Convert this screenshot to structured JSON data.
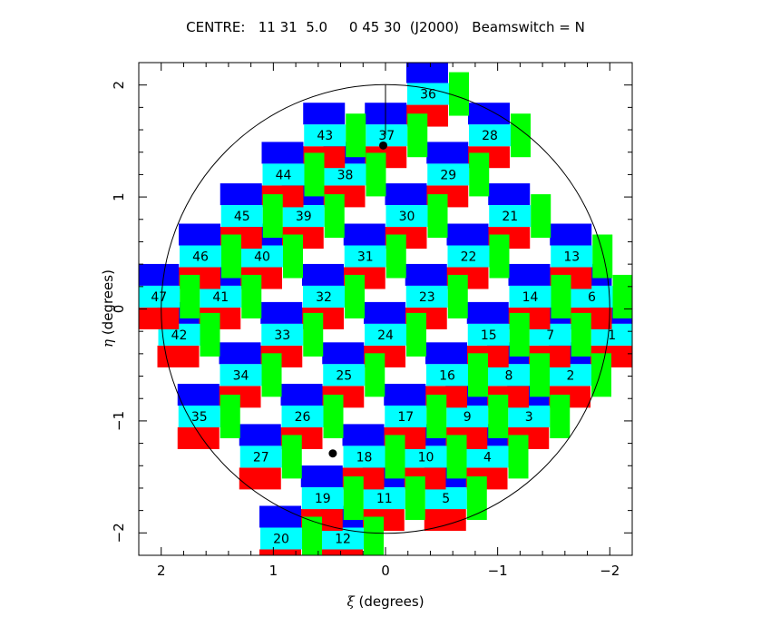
{
  "header": {
    "text": "CENTRE:   11 31  5.0     0 45 30  (J2000)   Beamswitch = N"
  },
  "colors": {
    "blue": "#0000ff",
    "red": "#ff0000",
    "cyan": "#00ffff",
    "green": "#00ff00"
  },
  "axes": {
    "xlabel_symbol": "ξ",
    "xlabel_rest": " (degrees)",
    "ylabel_symbol": "η",
    "ylabel_rest": " (degrees)",
    "xlim": [
      2.2,
      -2.2
    ],
    "ylim": [
      -2.2,
      2.2
    ],
    "xticks": [
      {
        "value": 2,
        "label": "2"
      },
      {
        "value": 1,
        "label": "1"
      },
      {
        "value": 0,
        "label": "0"
      },
      {
        "value": -1,
        "label": "−1"
      },
      {
        "value": -2,
        "label": "−2"
      }
    ],
    "yticks": [
      {
        "value": 2,
        "label": "2"
      },
      {
        "value": 1,
        "label": "1"
      },
      {
        "value": 0,
        "label": "0"
      },
      {
        "value": -1,
        "label": "−1"
      },
      {
        "value": -2,
        "label": "−2"
      }
    ]
  },
  "circle": {
    "xi": 0,
    "eta": 0,
    "radius": 2.0
  },
  "marker_points": [
    {
      "xi": 0.02,
      "eta": 1.46
    },
    {
      "xi": 0.47,
      "eta": -1.29
    }
  ],
  "tiles": [
    {
      "label": "1",
      "xi": -2.02,
      "eta": -0.23
    },
    {
      "label": "2",
      "xi": -1.65,
      "eta": -0.59
    },
    {
      "label": "3",
      "xi": -1.28,
      "eta": -0.96
    },
    {
      "label": "4",
      "xi": -0.91,
      "eta": -1.32
    },
    {
      "label": "5",
      "xi": -0.54,
      "eta": -1.69
    },
    {
      "label": "6",
      "xi": -1.84,
      "eta": 0.11
    },
    {
      "label": "7",
      "xi": -1.47,
      "eta": -0.23
    },
    {
      "label": "8",
      "xi": -1.1,
      "eta": -0.59
    },
    {
      "label": "9",
      "xi": -0.73,
      "eta": -0.96
    },
    {
      "label": "10",
      "xi": -0.36,
      "eta": -1.32
    },
    {
      "label": "11",
      "xi": 0.01,
      "eta": -1.69
    },
    {
      "label": "12",
      "xi": 0.38,
      "eta": -2.05
    },
    {
      "label": "13",
      "xi": -1.66,
      "eta": 0.47
    },
    {
      "label": "14",
      "xi": -1.29,
      "eta": 0.11
    },
    {
      "label": "15",
      "xi": -0.92,
      "eta": -0.23
    },
    {
      "label": "16",
      "xi": -0.55,
      "eta": -0.59
    },
    {
      "label": "17",
      "xi": -0.18,
      "eta": -0.96
    },
    {
      "label": "18",
      "xi": 0.19,
      "eta": -1.32
    },
    {
      "label": "19",
      "xi": 0.56,
      "eta": -1.69
    },
    {
      "label": "20",
      "xi": 0.93,
      "eta": -2.05
    },
    {
      "label": "21",
      "xi": -1.11,
      "eta": 0.83
    },
    {
      "label": "22",
      "xi": -0.74,
      "eta": 0.47
    },
    {
      "label": "23",
      "xi": -0.37,
      "eta": 0.11
    },
    {
      "label": "24",
      "xi": 0.0,
      "eta": -0.23
    },
    {
      "label": "25",
      "xi": 0.37,
      "eta": -0.59
    },
    {
      "label": "26",
      "xi": 0.74,
      "eta": -0.96
    },
    {
      "label": "27",
      "xi": 1.11,
      "eta": -1.32
    },
    {
      "label": "28",
      "xi": -0.93,
      "eta": 1.55
    },
    {
      "label": "29",
      "xi": -0.56,
      "eta": 1.2
    },
    {
      "label": "30",
      "xi": -0.19,
      "eta": 0.83
    },
    {
      "label": "31",
      "xi": 0.18,
      "eta": 0.47
    },
    {
      "label": "32",
      "xi": 0.55,
      "eta": 0.11
    },
    {
      "label": "33",
      "xi": 0.92,
      "eta": -0.23
    },
    {
      "label": "34",
      "xi": 1.29,
      "eta": -0.59
    },
    {
      "label": "35",
      "xi": 1.66,
      "eta": -0.96
    },
    {
      "label": "36",
      "xi": -0.38,
      "eta": 1.92
    },
    {
      "label": "37",
      "xi": -0.01,
      "eta": 1.55
    },
    {
      "label": "38",
      "xi": 0.36,
      "eta": 1.2
    },
    {
      "label": "39",
      "xi": 0.73,
      "eta": 0.83
    },
    {
      "label": "40",
      "xi": 1.1,
      "eta": 0.47
    },
    {
      "label": "41",
      "xi": 1.47,
      "eta": 0.11
    },
    {
      "label": "42",
      "xi": 1.84,
      "eta": -0.23
    },
    {
      "label": "43",
      "xi": 0.54,
      "eta": 1.55
    },
    {
      "label": "44",
      "xi": 0.91,
      "eta": 1.2
    },
    {
      "label": "45",
      "xi": 1.28,
      "eta": 0.83
    },
    {
      "label": "46",
      "xi": 1.65,
      "eta": 0.47
    },
    {
      "label": "47",
      "xi": 2.02,
      "eta": 0.11
    }
  ]
}
